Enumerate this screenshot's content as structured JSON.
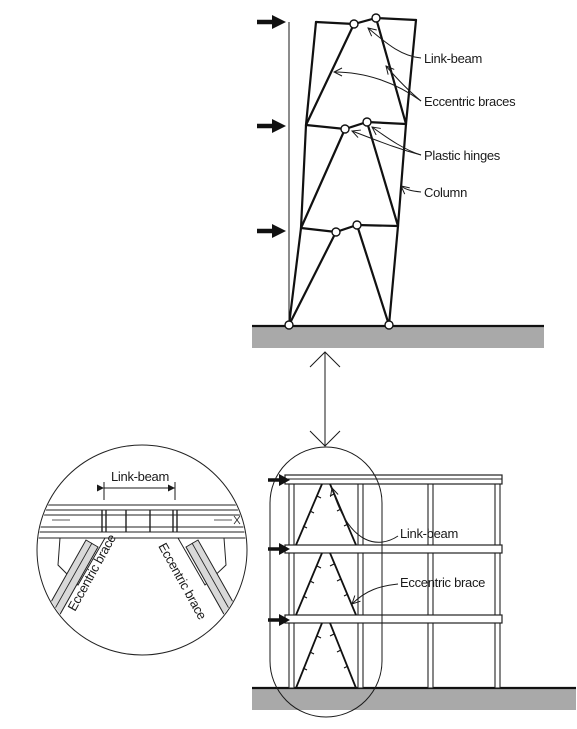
{
  "labels": {
    "upper_link_beam": "Link-beam",
    "upper_eccentric_braces": "Eccentric braces",
    "upper_plastic_hinges": "Plastic hinges",
    "upper_column": "Column",
    "lower_link_beam": "Link-beam",
    "lower_eccentric_brace": "Eccentric brace",
    "detail_link_beam": "Link-beam",
    "detail_eccentric_brace_left": "Eccentric brace",
    "detail_eccentric_brace_right": "Eccentric brace"
  },
  "colors": {
    "ground": "#a9a9a9",
    "line": "#111111"
  }
}
